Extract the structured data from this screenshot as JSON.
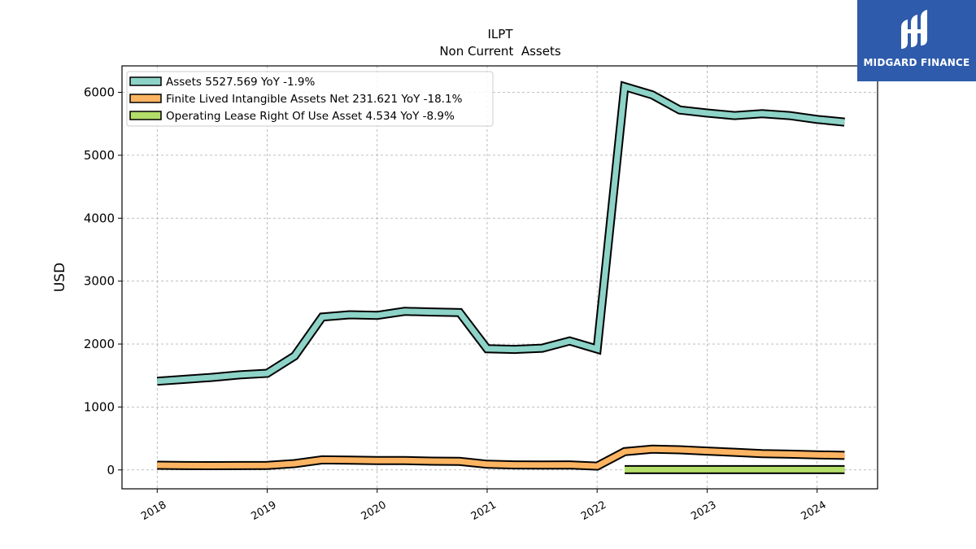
{
  "chart_data": {
    "type": "line",
    "title": "ILPT",
    "subtitle": "Non Current  Assets",
    "ylabel": "USD",
    "xlim": [
      2017.68,
      2024.55
    ],
    "ylim": [
      -300,
      6420
    ],
    "x_ticks": [
      "2018",
      "2019",
      "2020",
      "2021",
      "2022",
      "2023",
      "2024"
    ],
    "y_ticks": [
      0,
      1000,
      2000,
      3000,
      4000,
      5000,
      6000
    ],
    "grid": true,
    "legend_position": "top-left",
    "series": [
      {
        "name": "Assets  5527.569 YoY -1.9%",
        "color": "#8dd3c7",
        "x": [
          2018.0,
          2018.25,
          2018.5,
          2018.75,
          2019.0,
          2019.25,
          2019.5,
          2019.75,
          2020.0,
          2020.25,
          2020.5,
          2020.75,
          2021.0,
          2021.25,
          2021.5,
          2021.75,
          2022.0,
          2022.25,
          2022.5,
          2022.75,
          2023.0,
          2023.25,
          2023.5,
          2023.75,
          2024.0,
          2024.25
        ],
        "values": [
          1410,
          1440,
          1470,
          1510,
          1535,
          1810,
          2430,
          2465,
          2455,
          2520,
          2510,
          2500,
          1925,
          1915,
          1935,
          2050,
          1920,
          6090,
          5960,
          5720,
          5670,
          5630,
          5660,
          5630,
          5570,
          5527.569
        ]
      },
      {
        "name": "Finite Lived Intangible Assets Net  231.621 YoY -18.1%",
        "color": "#fdb462",
        "x": [
          2018.0,
          2018.25,
          2018.5,
          2018.75,
          2019.0,
          2019.25,
          2019.5,
          2019.75,
          2020.0,
          2020.25,
          2020.5,
          2020.75,
          2021.0,
          2021.25,
          2021.5,
          2021.75,
          2022.0,
          2022.25,
          2022.5,
          2022.75,
          2023.0,
          2023.25,
          2023.5,
          2023.75,
          2024.0,
          2024.25
        ],
        "values": [
          75,
          70,
          68,
          70,
          72,
          100,
          160,
          155,
          150,
          148,
          140,
          135,
          90,
          80,
          78,
          80,
          60,
          290,
          330,
          320,
          300,
          280,
          260,
          250,
          240,
          231.621
        ]
      },
      {
        "name": "Operating Lease Right Of Use Asset  4.534 YoY -8.9%",
        "color": "#b3de69",
        "x": [
          2022.25,
          2022.5,
          2022.75,
          2023.0,
          2023.25,
          2023.5,
          2023.75,
          2024.0,
          2024.25
        ],
        "values": [
          5,
          5,
          5,
          5,
          5,
          5,
          5,
          5,
          4.534
        ]
      }
    ]
  },
  "logo": {
    "text": "MIDGARD FINANCE"
  }
}
